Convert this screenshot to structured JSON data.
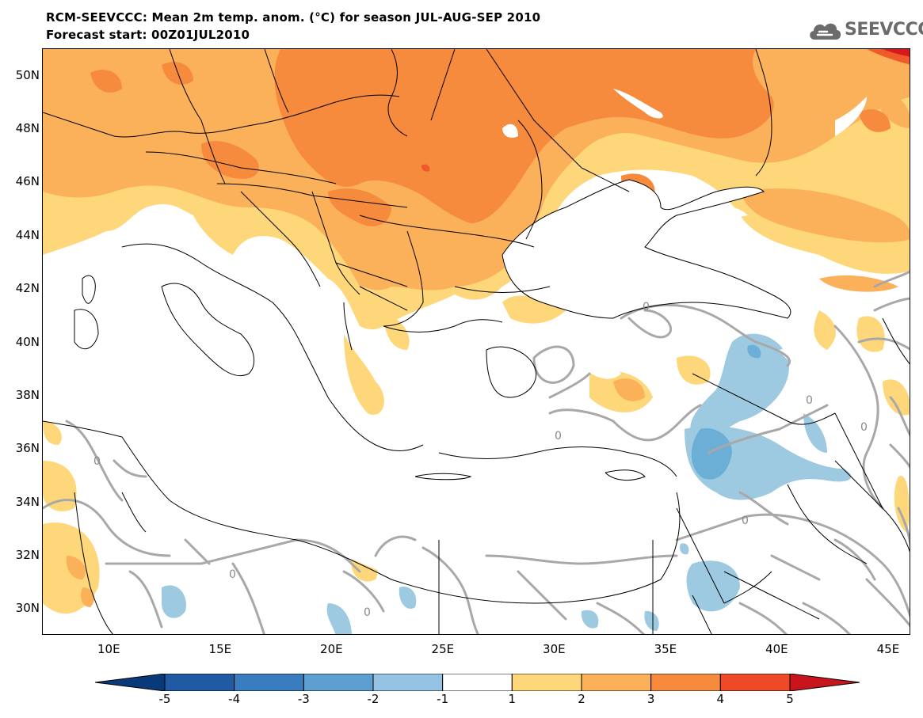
{
  "title": {
    "line1": "RCM-SEEVCCC: Mean 2m temp. anom. (°C) for season JUL-AUG-SEP 2010",
    "line2": "Forecast start: 00Z01JUL2010"
  },
  "logo": {
    "text": "SEEVCCC",
    "icon": "cloud-icon"
  },
  "map": {
    "lon_range": [
      7,
      46
    ],
    "lat_range": [
      29,
      51
    ],
    "lat_ticks": [
      {
        "value": 50,
        "label": "50N"
      },
      {
        "value": 48,
        "label": "48N"
      },
      {
        "value": 46,
        "label": "46N"
      },
      {
        "value": 44,
        "label": "44N"
      },
      {
        "value": 42,
        "label": "42N"
      },
      {
        "value": 40,
        "label": "40N"
      },
      {
        "value": 38,
        "label": "38N"
      },
      {
        "value": 36,
        "label": "36N"
      },
      {
        "value": 34,
        "label": "34N"
      },
      {
        "value": 32,
        "label": "32N"
      },
      {
        "value": 30,
        "label": "30N"
      }
    ],
    "lon_ticks": [
      {
        "value": 10,
        "label": "10E"
      },
      {
        "value": 15,
        "label": "15E"
      },
      {
        "value": 20,
        "label": "20E"
      },
      {
        "value": 25,
        "label": "25E"
      },
      {
        "value": 30,
        "label": "30E"
      },
      {
        "value": 35,
        "label": "35E"
      },
      {
        "value": 40,
        "label": "40E"
      },
      {
        "value": 45,
        "label": "45E"
      }
    ],
    "zero_contour_label": "0",
    "colors": {
      "anom_1_2": "#fdd77a",
      "anom_2_3": "#fbb15a",
      "anom_3_4": "#f68a3d",
      "anom_4_5": "#ee5a2c",
      "anom_gt5": "#d7191c",
      "anom_m1_m2": "#9ecae1",
      "anom_m2_m3": "#6baed6",
      "contour": "#a8a8a8",
      "border": "#000000"
    }
  },
  "colorbar": {
    "labels": [
      "-5",
      "-4",
      "-3",
      "-2",
      "-1",
      "1",
      "2",
      "3",
      "4",
      "5"
    ],
    "colors": [
      "#1f5aa3",
      "#3a7dbf",
      "#5e9fd1",
      "#96c3e3",
      "#ffffff",
      "#fdd77a",
      "#fbb15a",
      "#f68a3d",
      "#ee4a2a"
    ],
    "end_low": "#083a7a",
    "end_high": "#c8141c"
  }
}
